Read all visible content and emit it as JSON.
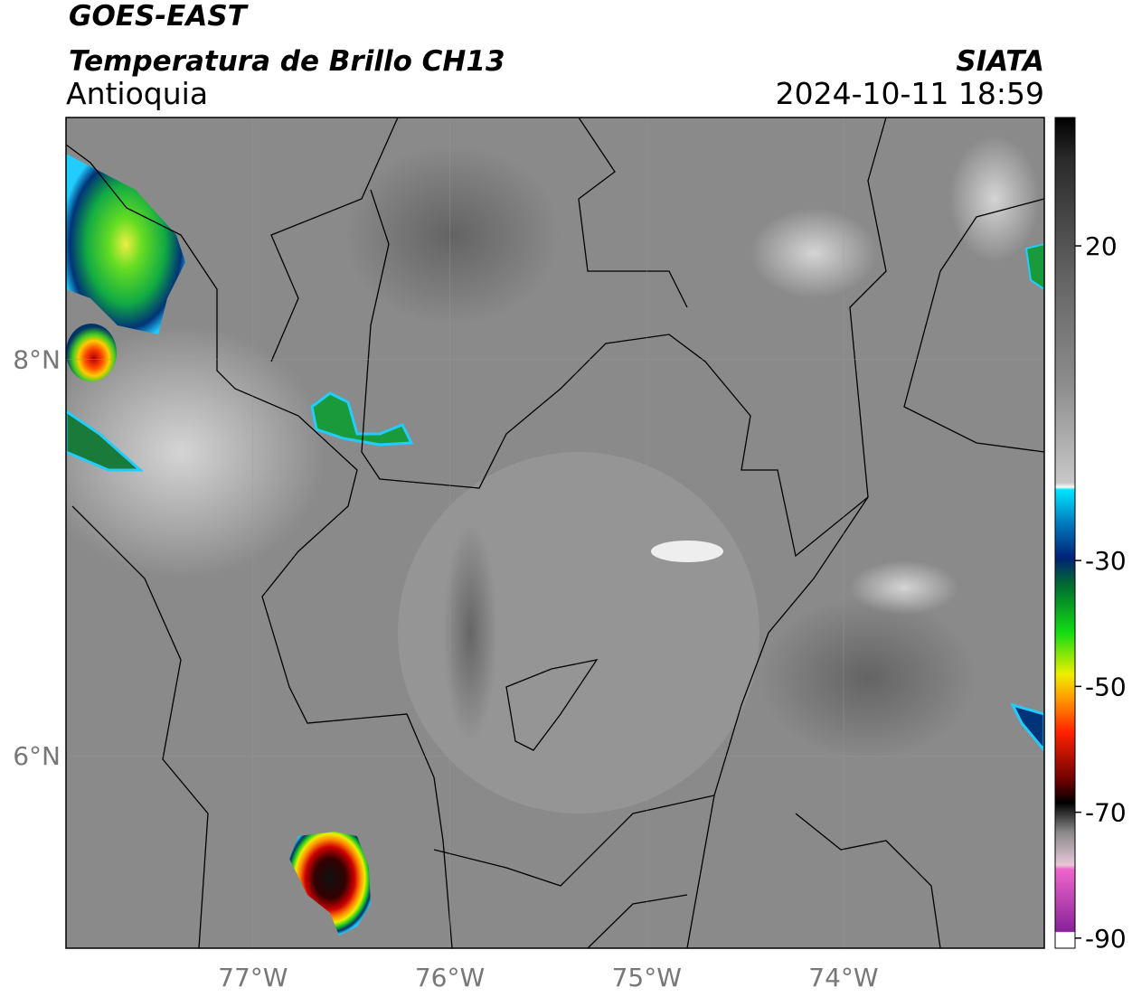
{
  "header": {
    "title": "GOES-EAST",
    "subtitle": "Temperatura de Brillo CH13",
    "region": "Antioquia",
    "source": "SIATA",
    "datetime": "2024-10-11 18:59"
  },
  "map": {
    "xlim": [
      -77.95,
      -72.98
    ],
    "ylim": [
      5.03,
      9.22
    ],
    "xticks": [
      {
        "value": -77,
        "label": "77°W"
      },
      {
        "value": -76,
        "label": "76°W"
      },
      {
        "value": -75,
        "label": "75°W"
      },
      {
        "value": -74,
        "label": "74°W"
      }
    ],
    "yticks": [
      {
        "value": 8,
        "label": "8°N"
      },
      {
        "value": 6,
        "label": "6°N"
      }
    ],
    "grid": true
  },
  "colorbar": {
    "lim": [
      -91.6,
      40.4
    ],
    "ticks": [
      20,
      -30,
      -50,
      -70,
      -90
    ]
  }
}
